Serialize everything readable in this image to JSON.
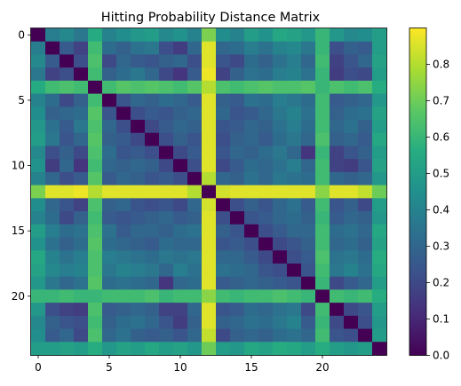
{
  "chart_data": {
    "type": "heatmap",
    "title": "Hitting Probability Distance Matrix",
    "xlabel": "",
    "ylabel": "",
    "size": 25,
    "x_ticks": [
      0,
      5,
      10,
      15,
      20
    ],
    "y_ticks": [
      0,
      5,
      10,
      15,
      20
    ],
    "colorbar": {
      "min": 0.0,
      "max": 0.9,
      "ticks": [
        0.0,
        0.1,
        0.2,
        0.3,
        0.4,
        0.5,
        0.6,
        0.7,
        0.8
      ],
      "labels": [
        "0.0",
        "0.1",
        "0.2",
        "0.3",
        "0.4",
        "0.5",
        "0.6",
        "0.7",
        "0.8"
      ]
    },
    "colormap": "viridis",
    "values": [
      [
        0.0,
        0.38,
        0.42,
        0.36,
        0.55,
        0.4,
        0.44,
        0.48,
        0.5,
        0.42,
        0.46,
        0.4,
        0.72,
        0.44,
        0.4,
        0.5,
        0.46,
        0.54,
        0.52,
        0.48,
        0.6,
        0.48,
        0.42,
        0.44,
        0.5
      ],
      [
        0.38,
        0.0,
        0.26,
        0.18,
        0.62,
        0.32,
        0.28,
        0.34,
        0.36,
        0.22,
        0.16,
        0.3,
        0.86,
        0.3,
        0.32,
        0.38,
        0.34,
        0.4,
        0.42,
        0.36,
        0.6,
        0.22,
        0.28,
        0.26,
        0.5
      ],
      [
        0.42,
        0.26,
        0.0,
        0.22,
        0.64,
        0.2,
        0.3,
        0.26,
        0.24,
        0.28,
        0.3,
        0.22,
        0.86,
        0.24,
        0.2,
        0.32,
        0.28,
        0.34,
        0.38,
        0.3,
        0.62,
        0.18,
        0.24,
        0.3,
        0.52
      ],
      [
        0.36,
        0.18,
        0.22,
        0.0,
        0.62,
        0.28,
        0.32,
        0.36,
        0.3,
        0.2,
        0.14,
        0.26,
        0.88,
        0.18,
        0.28,
        0.34,
        0.32,
        0.38,
        0.4,
        0.34,
        0.6,
        0.16,
        0.22,
        0.2,
        0.5
      ],
      [
        0.55,
        0.62,
        0.64,
        0.62,
        0.0,
        0.62,
        0.66,
        0.64,
        0.66,
        0.64,
        0.62,
        0.66,
        0.8,
        0.64,
        0.62,
        0.64,
        0.66,
        0.64,
        0.64,
        0.66,
        0.6,
        0.64,
        0.62,
        0.64,
        0.56
      ],
      [
        0.4,
        0.32,
        0.2,
        0.28,
        0.62,
        0.0,
        0.24,
        0.3,
        0.28,
        0.32,
        0.3,
        0.26,
        0.86,
        0.28,
        0.26,
        0.34,
        0.32,
        0.38,
        0.36,
        0.32,
        0.62,
        0.26,
        0.28,
        0.3,
        0.48
      ],
      [
        0.44,
        0.28,
        0.3,
        0.32,
        0.66,
        0.24,
        0.0,
        0.22,
        0.26,
        0.24,
        0.28,
        0.3,
        0.86,
        0.3,
        0.24,
        0.26,
        0.3,
        0.36,
        0.4,
        0.34,
        0.62,
        0.28,
        0.32,
        0.34,
        0.52
      ],
      [
        0.48,
        0.34,
        0.26,
        0.36,
        0.64,
        0.3,
        0.22,
        0.0,
        0.2,
        0.26,
        0.3,
        0.28,
        0.86,
        0.24,
        0.26,
        0.3,
        0.28,
        0.34,
        0.38,
        0.32,
        0.62,
        0.3,
        0.34,
        0.28,
        0.5
      ],
      [
        0.5,
        0.36,
        0.24,
        0.3,
        0.66,
        0.28,
        0.26,
        0.2,
        0.0,
        0.22,
        0.28,
        0.24,
        0.86,
        0.22,
        0.28,
        0.3,
        0.26,
        0.32,
        0.36,
        0.3,
        0.64,
        0.28,
        0.3,
        0.26,
        0.54
      ],
      [
        0.42,
        0.22,
        0.28,
        0.2,
        0.64,
        0.32,
        0.24,
        0.26,
        0.22,
        0.0,
        0.2,
        0.26,
        0.86,
        0.24,
        0.3,
        0.28,
        0.32,
        0.36,
        0.3,
        0.14,
        0.6,
        0.18,
        0.24,
        0.28,
        0.5
      ],
      [
        0.46,
        0.16,
        0.3,
        0.14,
        0.62,
        0.3,
        0.28,
        0.3,
        0.28,
        0.2,
        0.0,
        0.22,
        0.86,
        0.2,
        0.26,
        0.32,
        0.3,
        0.34,
        0.38,
        0.3,
        0.62,
        0.18,
        0.16,
        0.24,
        0.52
      ],
      [
        0.4,
        0.3,
        0.22,
        0.26,
        0.66,
        0.26,
        0.3,
        0.28,
        0.24,
        0.26,
        0.22,
        0.0,
        0.8,
        0.3,
        0.28,
        0.34,
        0.3,
        0.36,
        0.34,
        0.32,
        0.62,
        0.3,
        0.28,
        0.3,
        0.48
      ],
      [
        0.72,
        0.86,
        0.86,
        0.88,
        0.8,
        0.86,
        0.86,
        0.86,
        0.86,
        0.86,
        0.86,
        0.8,
        0.0,
        0.84,
        0.86,
        0.86,
        0.86,
        0.86,
        0.86,
        0.86,
        0.74,
        0.86,
        0.86,
        0.82,
        0.7
      ],
      [
        0.44,
        0.3,
        0.24,
        0.18,
        0.64,
        0.28,
        0.3,
        0.24,
        0.22,
        0.24,
        0.2,
        0.3,
        0.84,
        0.0,
        0.22,
        0.28,
        0.24,
        0.3,
        0.34,
        0.26,
        0.62,
        0.24,
        0.28,
        0.2,
        0.5
      ],
      [
        0.4,
        0.32,
        0.2,
        0.28,
        0.62,
        0.26,
        0.24,
        0.26,
        0.28,
        0.3,
        0.26,
        0.28,
        0.86,
        0.22,
        0.0,
        0.24,
        0.26,
        0.3,
        0.32,
        0.28,
        0.6,
        0.26,
        0.3,
        0.28,
        0.48
      ],
      [
        0.5,
        0.38,
        0.32,
        0.34,
        0.64,
        0.34,
        0.26,
        0.3,
        0.3,
        0.28,
        0.32,
        0.34,
        0.86,
        0.28,
        0.24,
        0.0,
        0.22,
        0.26,
        0.3,
        0.3,
        0.62,
        0.32,
        0.34,
        0.3,
        0.54
      ],
      [
        0.46,
        0.34,
        0.28,
        0.32,
        0.66,
        0.32,
        0.3,
        0.28,
        0.26,
        0.32,
        0.3,
        0.3,
        0.86,
        0.24,
        0.26,
        0.22,
        0.0,
        0.2,
        0.24,
        0.28,
        0.62,
        0.3,
        0.32,
        0.28,
        0.52
      ],
      [
        0.54,
        0.4,
        0.34,
        0.38,
        0.64,
        0.38,
        0.36,
        0.34,
        0.32,
        0.36,
        0.34,
        0.36,
        0.86,
        0.3,
        0.3,
        0.26,
        0.2,
        0.0,
        0.22,
        0.26,
        0.64,
        0.34,
        0.36,
        0.32,
        0.56
      ],
      [
        0.52,
        0.42,
        0.38,
        0.4,
        0.64,
        0.36,
        0.4,
        0.38,
        0.36,
        0.3,
        0.38,
        0.34,
        0.86,
        0.34,
        0.32,
        0.3,
        0.24,
        0.22,
        0.0,
        0.24,
        0.62,
        0.36,
        0.4,
        0.34,
        0.54
      ],
      [
        0.48,
        0.36,
        0.3,
        0.34,
        0.66,
        0.32,
        0.34,
        0.32,
        0.3,
        0.14,
        0.3,
        0.32,
        0.86,
        0.26,
        0.28,
        0.3,
        0.28,
        0.26,
        0.24,
        0.0,
        0.6,
        0.2,
        0.26,
        0.3,
        0.5
      ],
      [
        0.6,
        0.6,
        0.62,
        0.6,
        0.6,
        0.62,
        0.62,
        0.62,
        0.64,
        0.6,
        0.62,
        0.62,
        0.74,
        0.62,
        0.6,
        0.62,
        0.62,
        0.64,
        0.62,
        0.6,
        0.0,
        0.62,
        0.6,
        0.62,
        0.56
      ],
      [
        0.48,
        0.22,
        0.18,
        0.16,
        0.64,
        0.26,
        0.28,
        0.3,
        0.28,
        0.18,
        0.18,
        0.3,
        0.86,
        0.24,
        0.26,
        0.32,
        0.3,
        0.34,
        0.36,
        0.2,
        0.62,
        0.0,
        0.2,
        0.24,
        0.5
      ],
      [
        0.42,
        0.28,
        0.24,
        0.22,
        0.62,
        0.28,
        0.32,
        0.34,
        0.3,
        0.24,
        0.16,
        0.28,
        0.86,
        0.28,
        0.3,
        0.34,
        0.32,
        0.36,
        0.4,
        0.26,
        0.6,
        0.2,
        0.0,
        0.22,
        0.48
      ],
      [
        0.44,
        0.26,
        0.3,
        0.2,
        0.64,
        0.3,
        0.34,
        0.28,
        0.26,
        0.28,
        0.24,
        0.3,
        0.82,
        0.2,
        0.28,
        0.3,
        0.28,
        0.32,
        0.34,
        0.3,
        0.62,
        0.24,
        0.22,
        0.0,
        0.5
      ],
      [
        0.5,
        0.5,
        0.52,
        0.5,
        0.56,
        0.48,
        0.52,
        0.5,
        0.54,
        0.5,
        0.52,
        0.48,
        0.7,
        0.5,
        0.48,
        0.54,
        0.52,
        0.56,
        0.54,
        0.5,
        0.56,
        0.5,
        0.48,
        0.5,
        0.0
      ]
    ]
  }
}
